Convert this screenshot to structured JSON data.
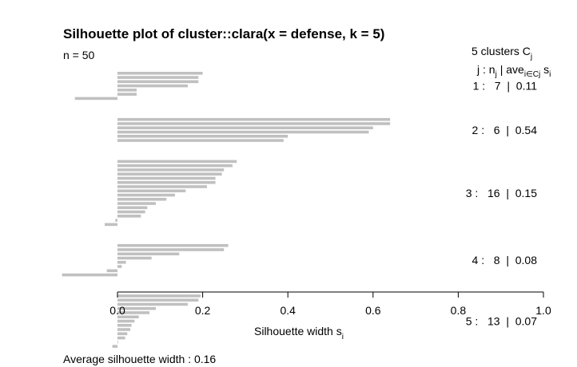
{
  "chart_data": {
    "type": "bar",
    "orientation": "horizontal",
    "title": "Silhouette plot of cluster::clara(x = defense, k = 5)",
    "n_label": "n = 50",
    "clusters_header": "5  clusters  C",
    "clusters_header_sub": "j",
    "col_header": {
      "j": "j :  n",
      "j_sub": "j",
      "ave": " | ave",
      "ave_sub": "i∈Cj",
      "s": "  s",
      "s_sub": "i"
    },
    "xlabel": "Silhouette width s",
    "xlabel_sub": "i",
    "xlim": [
      0,
      1
    ],
    "xticks": [
      "0.0",
      "0.2",
      "0.4",
      "0.6",
      "0.8",
      "1.0"
    ],
    "footer": "Average silhouette width :  0.16",
    "bar_color": "#c0c0c0",
    "clusters": [
      {
        "label": "1 :   7  |  0.11",
        "values": [
          0.2,
          0.19,
          0.19,
          0.165,
          0.045,
          0.045,
          -0.1
        ]
      },
      {
        "label": "2 :   6  |  0.54",
        "values": [
          0.64,
          0.64,
          0.6,
          0.59,
          0.4,
          0.39
        ]
      },
      {
        "label": "3 :   16  |  0.15",
        "values": [
          0.28,
          0.27,
          0.25,
          0.245,
          0.23,
          0.23,
          0.21,
          0.16,
          0.135,
          0.115,
          0.09,
          0.07,
          0.065,
          0.055,
          -0.005,
          -0.03
        ]
      },
      {
        "label": "4 :   8  |  0.08",
        "values": [
          0.26,
          0.25,
          0.145,
          0.08,
          0.02,
          0.01,
          -0.025,
          -0.13
        ]
      },
      {
        "label": "5 :   13  |  0.07",
        "values": [
          0.195,
          0.19,
          0.165,
          0.09,
          0.075,
          0.05,
          0.04,
          0.033,
          0.03,
          0.023,
          0.018,
          0.0,
          -0.012
        ]
      }
    ]
  }
}
